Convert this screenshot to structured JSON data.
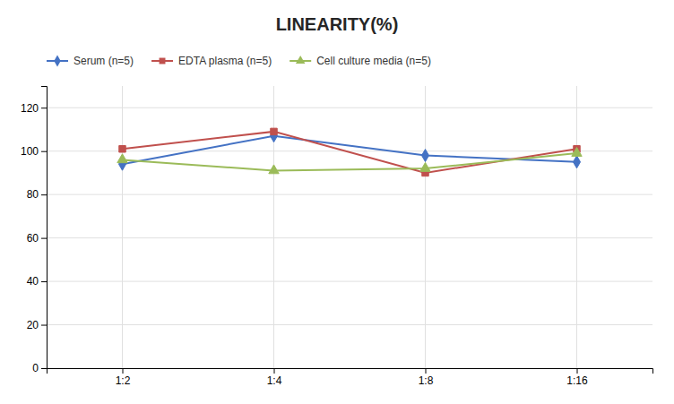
{
  "chart_data": {
    "type": "line",
    "title": "LINEARITY(%)",
    "categories": [
      "1:2",
      "1:4",
      "1:8",
      "1:16"
    ],
    "series": [
      {
        "name": "Serum (n=5)",
        "color": "#4472C4",
        "marker": "diamond",
        "values": [
          94,
          107,
          98,
          95
        ]
      },
      {
        "name": "EDTA plasma (n=5)",
        "color": "#C0504D",
        "marker": "square",
        "values": [
          101,
          109,
          90,
          101
        ]
      },
      {
        "name": "Cell culture media (n=5)",
        "color": "#9BBB59",
        "marker": "triangle",
        "values": [
          96,
          91,
          92,
          99
        ]
      }
    ],
    "ylim": [
      0,
      130
    ],
    "yticks": [
      0,
      20,
      40,
      60,
      80,
      100,
      120
    ],
    "grid": true,
    "legend": "top-left"
  }
}
